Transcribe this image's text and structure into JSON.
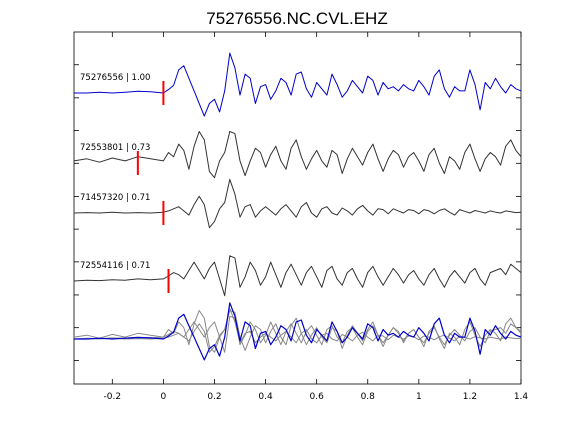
{
  "chart_data": {
    "type": "line",
    "title": "75276556.NC.CVL.EHZ",
    "xlabel": "",
    "ylabel": "",
    "xlim": [
      -0.35,
      1.4
    ],
    "xticks": [
      "-0.2",
      "0",
      "0.2",
      "0.4",
      "0.6",
      "0.8",
      "1",
      "1.2",
      "1.4"
    ],
    "xtick_values": [
      -0.2,
      0,
      0.2,
      0.4,
      0.6,
      0.8,
      1.0,
      1.2,
      1.4
    ],
    "grid": false,
    "legend": "none",
    "colors": {
      "main": "#0000cc",
      "others": "#333333",
      "stack": "#888888",
      "pick": "#ff0000"
    },
    "series": [
      {
        "name": "75276556 | 1.00",
        "label": "75276556 | 1.00",
        "color": "#0000cc",
        "pick_time": 0.0,
        "x": [
          -0.35,
          -0.3,
          -0.25,
          -0.2,
          -0.15,
          -0.1,
          -0.05,
          0.0,
          0.02,
          0.04,
          0.06,
          0.08,
          0.1,
          0.12,
          0.14,
          0.16,
          0.18,
          0.2,
          0.22,
          0.24,
          0.26,
          0.28,
          0.3,
          0.32,
          0.34,
          0.36,
          0.38,
          0.4,
          0.42,
          0.44,
          0.46,
          0.48,
          0.5,
          0.52,
          0.54,
          0.56,
          0.58,
          0.6,
          0.62,
          0.64,
          0.66,
          0.68,
          0.7,
          0.72,
          0.74,
          0.76,
          0.78,
          0.8,
          0.82,
          0.84,
          0.86,
          0.88,
          0.9,
          0.92,
          0.94,
          0.96,
          0.98,
          1.0,
          1.02,
          1.04,
          1.06,
          1.08,
          1.1,
          1.12,
          1.14,
          1.16,
          1.18,
          1.2,
          1.22,
          1.24,
          1.26,
          1.28,
          1.3,
          1.32,
          1.34,
          1.36,
          1.38,
          1.4
        ],
        "y": [
          0,
          0,
          0.02,
          0,
          0.02,
          0.04,
          0.03,
          0,
          0.08,
          0.18,
          0.55,
          0.65,
          0.35,
          0.05,
          -0.25,
          -0.55,
          -0.25,
          -0.15,
          -0.45,
          0.05,
          0.95,
          0.6,
          -0.05,
          0.45,
          0.35,
          -0.25,
          0.15,
          0.2,
          -0.15,
          0.05,
          0.35,
          0.25,
          -0.05,
          0.45,
          0.5,
          0.1,
          -0.1,
          0.25,
          0.1,
          -0.05,
          0.45,
          0.2,
          -0.1,
          0.05,
          0.3,
          0.15,
          0.0,
          0.4,
          0.3,
          -0.05,
          0.25,
          0.1,
          0.15,
          0.05,
          0.2,
          0.1,
          0.05,
          0.3,
          0.15,
          -0.05,
          0.4,
          0.55,
          0.1,
          -0.1,
          0.15,
          0.05,
          0.05,
          0.55,
          0.2,
          -0.4,
          0.25,
          0.1,
          0.35,
          0.15,
          0.0,
          0.2,
          0.1,
          0.05
        ]
      },
      {
        "name": "72553801 | 0.73",
        "label": "72553801 | 0.73",
        "color": "#333333",
        "pick_time": -0.1,
        "x": [
          -0.35,
          -0.3,
          -0.25,
          -0.2,
          -0.15,
          -0.1,
          -0.05,
          0.0,
          0.02,
          0.04,
          0.06,
          0.08,
          0.1,
          0.12,
          0.14,
          0.16,
          0.18,
          0.2,
          0.22,
          0.24,
          0.26,
          0.28,
          0.3,
          0.32,
          0.34,
          0.36,
          0.38,
          0.4,
          0.42,
          0.44,
          0.46,
          0.48,
          0.5,
          0.52,
          0.54,
          0.56,
          0.58,
          0.6,
          0.62,
          0.64,
          0.66,
          0.68,
          0.7,
          0.72,
          0.74,
          0.76,
          0.78,
          0.8,
          0.82,
          0.84,
          0.86,
          0.88,
          0.9,
          0.92,
          0.94,
          0.96,
          0.98,
          1.0,
          1.02,
          1.04,
          1.06,
          1.08,
          1.1,
          1.12,
          1.14,
          1.16,
          1.18,
          1.2,
          1.22,
          1.24,
          1.26,
          1.28,
          1.3,
          1.32,
          1.34,
          1.36,
          1.38,
          1.4
        ],
        "y": [
          0.05,
          0.1,
          0.02,
          0.12,
          0.05,
          0.15,
          0.1,
          0.05,
          0.25,
          0.15,
          0.45,
          0.3,
          -0.15,
          0.4,
          0.75,
          0.55,
          -0.2,
          -0.35,
          0.05,
          0.25,
          0.75,
          0.7,
          0.05,
          -0.3,
          0.05,
          0.35,
          0.25,
          -0.1,
          0.2,
          0.4,
          0.05,
          -0.15,
          0.35,
          0.55,
          0.15,
          -0.15,
          0.1,
          0.3,
          0.05,
          -0.1,
          0.3,
          0.2,
          -0.25,
          0.1,
          0.35,
          0.15,
          -0.05,
          0.25,
          0.45,
          0.1,
          -0.2,
          0.1,
          0.3,
          0.2,
          -0.1,
          0.15,
          0.25,
          0.05,
          -0.2,
          0.2,
          0.35,
          0.0,
          -0.25,
          0.15,
          0.05,
          -0.15,
          0.25,
          0.45,
          0.1,
          -0.2,
          0.1,
          0.25,
          0.15,
          -0.05,
          0.4,
          0.55,
          0.3,
          0.15
        ]
      },
      {
        "name": "71457320 | 0.71",
        "label": "71457320 | 0.71",
        "color": "#333333",
        "pick_time": 0.0,
        "x": [
          -0.35,
          -0.3,
          -0.25,
          -0.2,
          -0.15,
          -0.1,
          -0.05,
          0.0,
          0.02,
          0.04,
          0.06,
          0.08,
          0.1,
          0.12,
          0.14,
          0.16,
          0.18,
          0.2,
          0.22,
          0.24,
          0.26,
          0.28,
          0.3,
          0.32,
          0.34,
          0.36,
          0.38,
          0.4,
          0.42,
          0.44,
          0.46,
          0.48,
          0.5,
          0.52,
          0.54,
          0.56,
          0.58,
          0.6,
          0.62,
          0.64,
          0.66,
          0.68,
          0.7,
          0.72,
          0.74,
          0.76,
          0.78,
          0.8,
          0.82,
          0.84,
          0.86,
          0.88,
          0.9,
          0.92,
          0.94,
          0.96,
          0.98,
          1.0,
          1.02,
          1.04,
          1.06,
          1.08,
          1.1,
          1.12,
          1.14,
          1.16,
          1.18,
          1.2,
          1.22,
          1.24,
          1.26,
          1.28,
          1.3,
          1.32,
          1.34,
          1.36,
          1.38,
          1.4
        ],
        "y": [
          0,
          0.01,
          0,
          0.02,
          0,
          0.01,
          0,
          0.02,
          0.05,
          0.1,
          0.15,
          0.05,
          -0.05,
          0.2,
          0.4,
          0.2,
          -0.35,
          -0.2,
          0.1,
          0.25,
          0.8,
          0.45,
          -0.1,
          0.15,
          0.2,
          -0.1,
          0.05,
          0.15,
          0.05,
          -0.05,
          0.1,
          0.2,
          0.05,
          -0.1,
          0.15,
          0.25,
          0.0,
          -0.1,
          0.1,
          0.15,
          0.0,
          -0.05,
          0.12,
          0.05,
          -0.05,
          0.1,
          0.18,
          0.05,
          -0.05,
          0.1,
          0.08,
          -0.02,
          0.1,
          0.05,
          0.0,
          0.08,
          0.06,
          -0.02,
          0.08,
          0.05,
          -0.02,
          0.06,
          0.1,
          0.02,
          -0.05,
          0.08,
          0.04,
          0.0,
          0.06,
          0.03,
          0.0,
          0.05,
          0.02,
          0.0,
          0.05,
          0.03,
          0.01,
          0.02
        ]
      },
      {
        "name": "72554116 | 0.71",
        "label": "72554116 | 0.71",
        "color": "#333333",
        "pick_time": 0.02,
        "x": [
          -0.35,
          -0.3,
          -0.25,
          -0.2,
          -0.15,
          -0.1,
          -0.05,
          0.0,
          0.02,
          0.04,
          0.06,
          0.08,
          0.1,
          0.12,
          0.14,
          0.16,
          0.18,
          0.2,
          0.22,
          0.24,
          0.26,
          0.28,
          0.3,
          0.32,
          0.34,
          0.36,
          0.38,
          0.4,
          0.42,
          0.44,
          0.46,
          0.48,
          0.5,
          0.52,
          0.54,
          0.56,
          0.58,
          0.6,
          0.62,
          0.64,
          0.66,
          0.68,
          0.7,
          0.72,
          0.74,
          0.76,
          0.78,
          0.8,
          0.82,
          0.84,
          0.86,
          0.88,
          0.9,
          0.92,
          0.94,
          0.96,
          0.98,
          1.0,
          1.02,
          1.04,
          1.06,
          1.08,
          1.1,
          1.12,
          1.14,
          1.16,
          1.18,
          1.2,
          1.22,
          1.24,
          1.26,
          1.28,
          1.3,
          1.32,
          1.34,
          1.36,
          1.38,
          1.4
        ],
        "y": [
          0,
          0.02,
          0.01,
          0.03,
          0.02,
          0.05,
          0.03,
          0.05,
          0.12,
          0.2,
          0.15,
          0.05,
          0.25,
          0.45,
          0.25,
          0.05,
          0.3,
          0.45,
          0.05,
          -0.35,
          0.6,
          0.55,
          -0.15,
          0.1,
          0.45,
          0.25,
          -0.1,
          0.1,
          0.45,
          0.15,
          -0.15,
          0.2,
          0.4,
          0.15,
          -0.1,
          0.2,
          0.35,
          0.1,
          -0.15,
          0.25,
          0.35,
          0.05,
          -0.1,
          0.2,
          0.3,
          0.05,
          -0.15,
          0.2,
          0.35,
          0.1,
          -0.1,
          0.1,
          0.3,
          0.15,
          -0.05,
          0.15,
          0.25,
          0.05,
          -0.1,
          0.15,
          0.3,
          0.05,
          -0.15,
          0.1,
          0.25,
          0.1,
          -0.05,
          0.2,
          0.3,
          0.05,
          -0.1,
          0.2,
          0.25,
          0.3,
          0.15,
          0.4,
          0.3,
          0.2
        ]
      }
    ],
    "stack": {
      "main_color": "#0000cc",
      "other_color": "#888888"
    }
  }
}
